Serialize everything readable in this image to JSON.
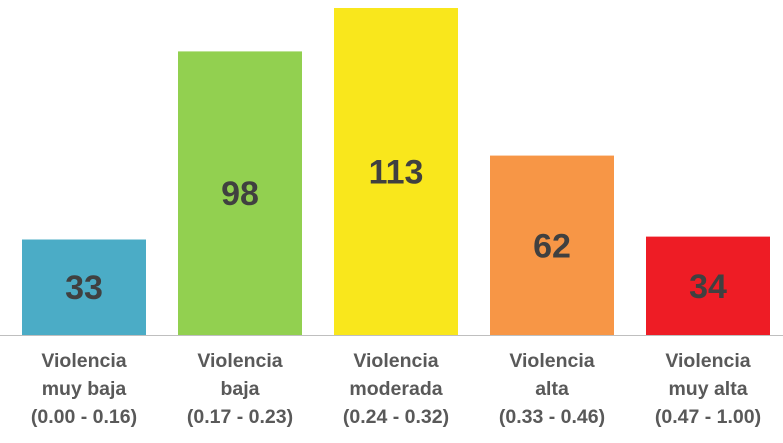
{
  "chart_data": {
    "type": "bar",
    "categories": [
      "Violencia muy baja (0.00 - 0.16)",
      "Violencia baja (0.17 - 0.23)",
      "Violencia moderada (0.24 - 0.32)",
      "Violencia alta (0.33 - 0.46)",
      "Violencia muy alta (0.47 - 1.00)"
    ],
    "values": [
      33,
      98,
      113,
      62,
      34
    ],
    "colors": [
      "#4bacc6",
      "#92d050",
      "#f9e71c",
      "#f79646",
      "#ee1c25"
    ]
  }
}
